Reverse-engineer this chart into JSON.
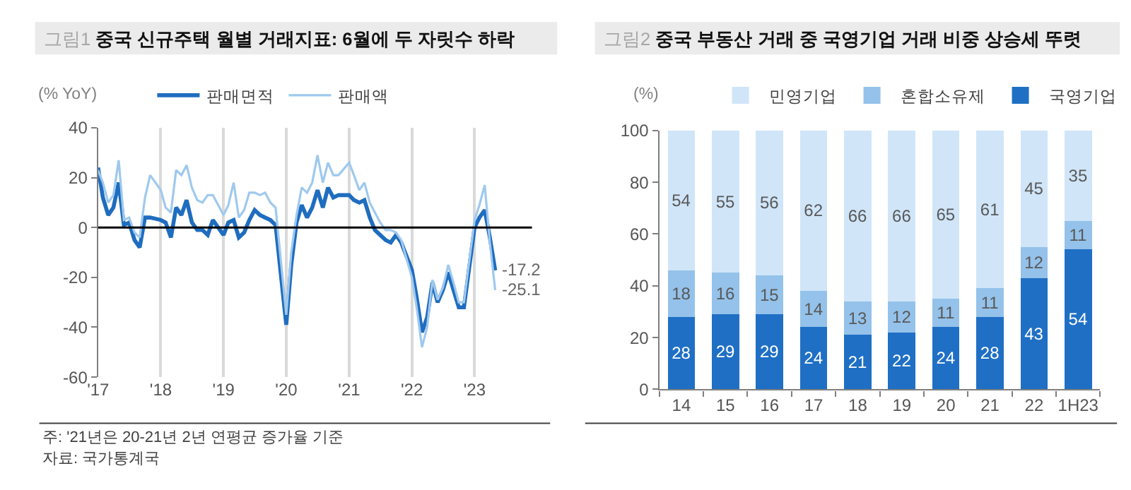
{
  "chart_data": [
    {
      "type": "line",
      "title": "그림1 중국 신규주택 월별 거래지표: 6월에 두 자릿수 하락",
      "ylabel": "(% YoY)",
      "x": [
        "2017-02",
        "2017-03",
        "2017-04",
        "2017-05",
        "2017-06",
        "2017-07",
        "2017-08",
        "2017-09",
        "2017-10",
        "2017-11",
        "2017-12",
        "2018-02",
        "2018-03",
        "2018-04",
        "2018-05",
        "2018-06",
        "2018-07",
        "2018-08",
        "2018-09",
        "2018-10",
        "2018-11",
        "2018-12",
        "2019-02",
        "2019-03",
        "2019-04",
        "2019-05",
        "2019-06",
        "2019-07",
        "2019-08",
        "2019-09",
        "2019-10",
        "2019-11",
        "2019-12",
        "2020-02",
        "2020-03",
        "2020-04",
        "2020-05",
        "2020-06",
        "2020-07",
        "2020-08",
        "2020-09",
        "2020-10",
        "2020-11",
        "2020-12",
        "2021-02",
        "2021-03",
        "2021-04",
        "2021-05",
        "2021-06",
        "2021-07",
        "2021-08",
        "2021-09",
        "2021-10",
        "2021-11",
        "2021-12",
        "2022-02",
        "2022-03",
        "2022-04",
        "2022-05",
        "2022-06",
        "2022-07",
        "2022-08",
        "2022-09",
        "2022-10",
        "2022-11",
        "2022-12",
        "2023-02",
        "2023-03",
        "2023-04",
        "2023-05",
        "2023-06"
      ],
      "series": [
        {
          "name": "판매면적",
          "color": "#1f6dbf",
          "values": [
            24,
            12,
            5,
            8,
            18,
            1,
            2,
            -5,
            -8,
            4,
            4,
            3,
            2,
            -4,
            8,
            5,
            11,
            2,
            -1,
            -1,
            -3,
            3,
            -3,
            2,
            3,
            -4,
            -2,
            3,
            7,
            5,
            4,
            3,
            1,
            -39,
            -15,
            2,
            9,
            4,
            8,
            15,
            8,
            16,
            12,
            13,
            13,
            11,
            10,
            11,
            4,
            -1,
            -3,
            -5,
            -6,
            -3,
            -6,
            -17,
            -28,
            -42,
            -36,
            -22,
            -30,
            -25,
            -18,
            -25,
            -32,
            -32,
            0,
            4,
            7,
            -4,
            -17.2
          ]
        },
        {
          "name": "판매액",
          "color": "#9fc9ee",
          "values": [
            23,
            18,
            10,
            13,
            27,
            3,
            4,
            -2,
            -4,
            12,
            21,
            15,
            8,
            6,
            23,
            21,
            25,
            16,
            11,
            10,
            13,
            13,
            5,
            9,
            18,
            4,
            7,
            14,
            14,
            13,
            14,
            10,
            8,
            -35,
            -10,
            5,
            16,
            14,
            18,
            29,
            18,
            26,
            21,
            21,
            26,
            21,
            15,
            18,
            10,
            6,
            2,
            -1,
            -1,
            -2,
            -5,
            -20,
            -32,
            -48,
            -40,
            -21,
            -29,
            -24,
            -15,
            -22,
            -30,
            -30,
            3,
            9,
            17,
            -6,
            -25.1
          ]
        }
      ],
      "xlim": [
        "2017-02",
        "2024-01"
      ],
      "xticks": [
        {
          "value": "2017-02",
          "label": "'17"
        },
        {
          "value": "2018-02",
          "label": "'18"
        },
        {
          "value": "2019-02",
          "label": "'19"
        },
        {
          "value": "2020-02",
          "label": "'20"
        },
        {
          "value": "2021-02",
          "label": "'21"
        },
        {
          "value": "2022-02",
          "label": "'22"
        },
        {
          "value": "2023-02",
          "label": "'23"
        }
      ],
      "ylim": [
        -60,
        40
      ],
      "yticks": [
        -60,
        -40,
        -20,
        0,
        20,
        40
      ],
      "grid": "x",
      "legend": "top",
      "ref_lines": [
        {
          "axis": "y",
          "value": 0,
          "color": "#000000"
        }
      ],
      "annotations": [
        {
          "text": "-17.2",
          "x": "2023-06",
          "y": -17.2
        },
        {
          "text": "-25.1",
          "x": "2023-06",
          "y": -25.1
        },
        "주: '21년은 20-21년 2년 연평균 증가율 기준",
        "자료: 국가통계국"
      ]
    },
    {
      "type": "bar",
      "stacked": true,
      "title": "그림2 중국 부동산 거래 중 국영기업 거래 비중 상승세 뚜렷",
      "ylabel": "(%)",
      "categories": [
        "14",
        "15",
        "16",
        "17",
        "18",
        "19",
        "20",
        "21",
        "22",
        "1H23"
      ],
      "series": [
        {
          "name": "국영기업",
          "color": "#1f6fc5",
          "values": [
            28,
            29,
            29,
            24,
            21,
            22,
            24,
            28,
            43,
            54
          ]
        },
        {
          "name": "혼합소유제",
          "color": "#94c2ea",
          "values": [
            18,
            16,
            15,
            14,
            13,
            12,
            11,
            11,
            12,
            11
          ]
        },
        {
          "name": "민영기업",
          "color": "#d0e5f8",
          "values": [
            54,
            55,
            56,
            62,
            66,
            66,
            65,
            61,
            45,
            35
          ]
        }
      ],
      "ylim": [
        0,
        100
      ],
      "yticks": [
        0,
        20,
        40,
        60,
        80,
        100
      ],
      "data_labels": true,
      "legend": "top"
    }
  ]
}
